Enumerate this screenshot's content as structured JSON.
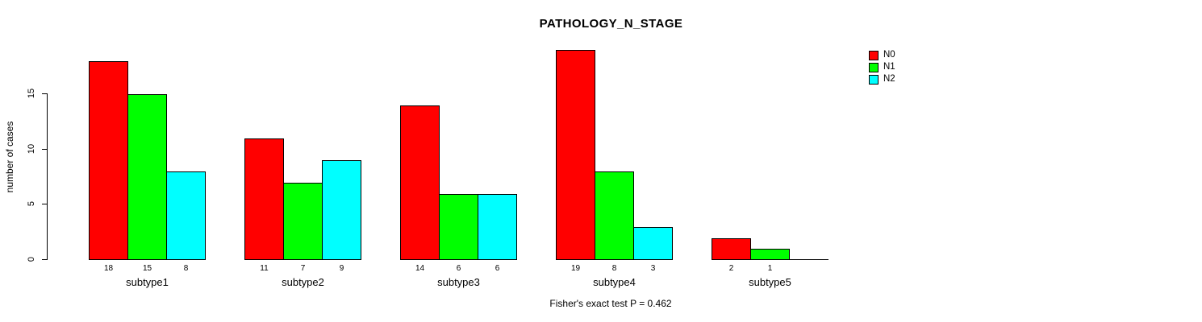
{
  "chart_data": {
    "type": "bar",
    "title": "PATHOLOGY_N_STAGE",
    "ylabel": "number of cases",
    "xlabel": "",
    "categories": [
      "subtype1",
      "subtype2",
      "subtype3",
      "subtype4",
      "subtype5"
    ],
    "series": [
      {
        "name": "N0",
        "color": "#FF0000",
        "values": [
          18,
          11,
          14,
          19,
          2
        ]
      },
      {
        "name": "N1",
        "color": "#00FF00",
        "values": [
          15,
          7,
          6,
          8,
          1
        ]
      },
      {
        "name": "N2",
        "color": "#00FFFF",
        "values": [
          8,
          9,
          6,
          3,
          0
        ]
      }
    ],
    "bar_value_labels": [
      [
        "18",
        "15",
        "8"
      ],
      [
        "11",
        "7",
        "9"
      ],
      [
        "14",
        "6",
        "6"
      ],
      [
        "19",
        "8",
        "3"
      ],
      [
        "2",
        "1",
        ""
      ]
    ],
    "yticks": [
      "0",
      "5",
      "10",
      "15"
    ],
    "ylim": [
      0,
      19
    ],
    "grid": false,
    "legend_position": "top-right",
    "annotation": "Fisher's exact test P = 0.462"
  }
}
